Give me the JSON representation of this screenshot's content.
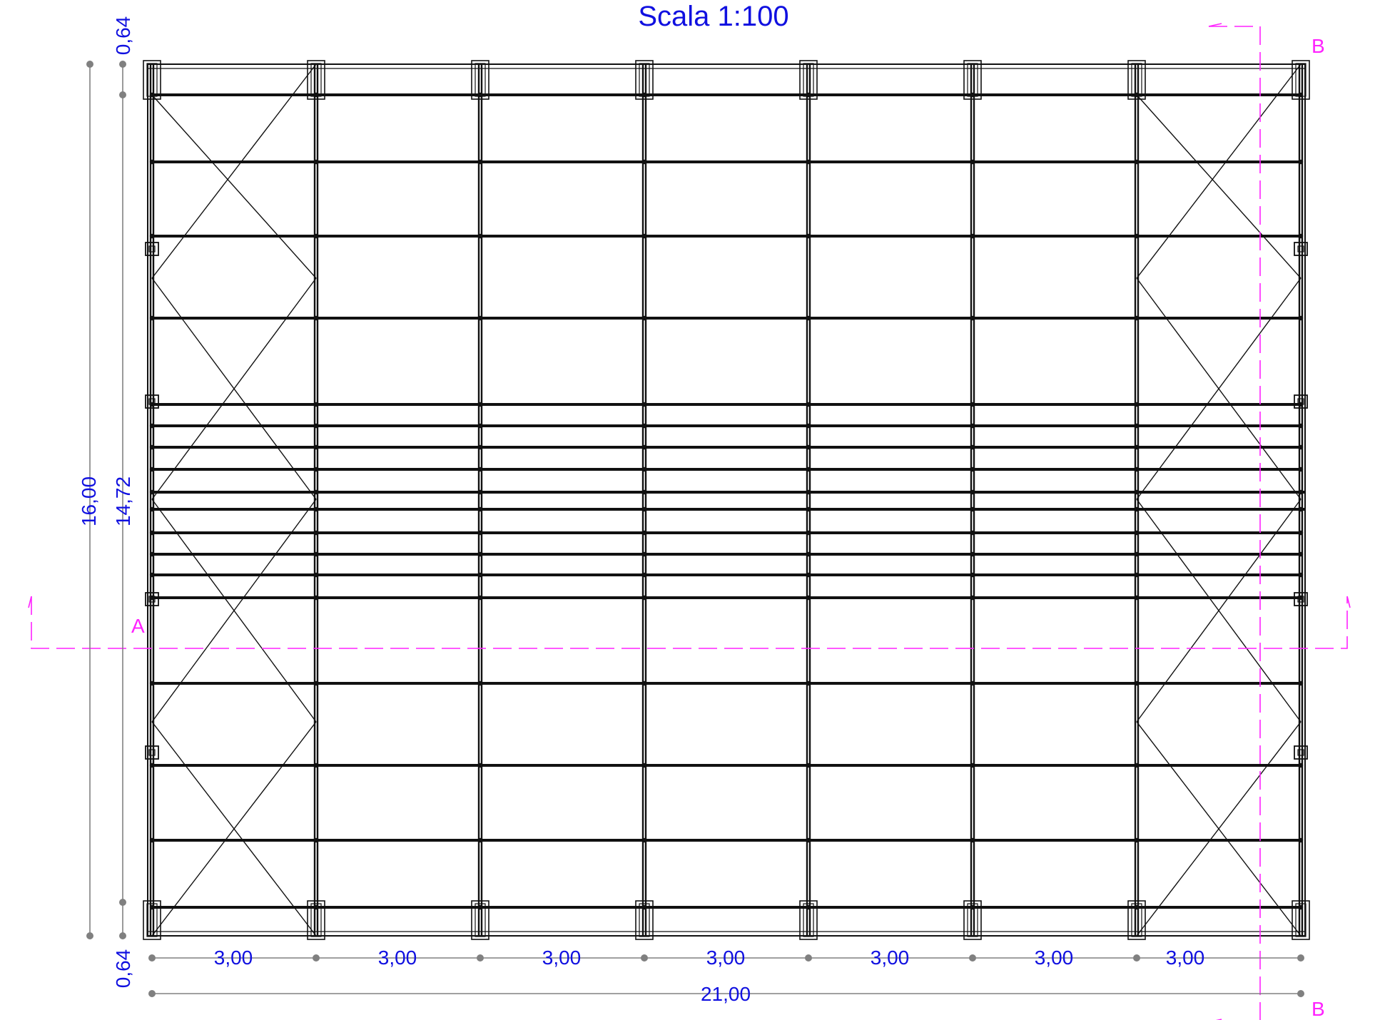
{
  "title": "Scala 1:100",
  "colors": {
    "structure": "#111111",
    "dimension_text": "#1010e0",
    "dimension_line": "#808080",
    "section_line": "#ff22ff",
    "background": "#ffffff"
  },
  "dimensions": {
    "total_width": "21,00",
    "bay_widths": [
      "3,00",
      "3,00",
      "3,00",
      "3,00",
      "3,00",
      "3,00",
      "3,00"
    ],
    "total_height": "16,00",
    "inner_height": "14,72",
    "top_offset": "0,64",
    "bottom_offset": "0,64"
  },
  "sections": {
    "horizontal": {
      "label_left": "A"
    },
    "vertical": {
      "label_top": "B",
      "label_bottom": "B"
    }
  }
}
